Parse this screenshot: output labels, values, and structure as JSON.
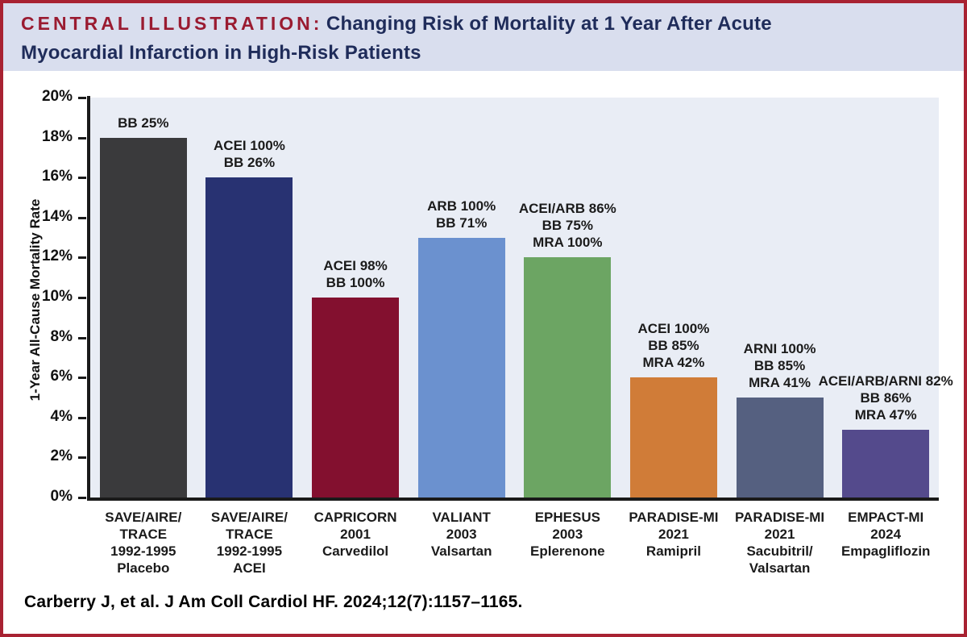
{
  "header": {
    "label": "CENTRAL ILLUSTRATION:",
    "title_line1": "Changing Risk of Mortality at 1 Year After Acute",
    "title_line2": "Myocardial Infarction in High-Risk Patients"
  },
  "chart_data": {
    "type": "bar",
    "title": "Changing Risk of Mortality at 1 Year After Acute Myocardial Infarction in High-Risk Patients",
    "xlabel": "",
    "ylabel": "1-Year All-Cause Mortality Rate",
    "ylim": [
      0,
      20
    ],
    "ytick_step": 2,
    "ytick_suffix": "%",
    "grid": false,
    "legend": "none",
    "plot_background": "#e9edf5",
    "axis_color": "#1a1a1a",
    "bars": [
      {
        "trial_lines": [
          "SAVE/AIRE/",
          "TRACE",
          "1992-1995",
          "Placebo"
        ],
        "value": 18,
        "color": "#3a3a3c",
        "annotation_lines": [
          "BB 25%"
        ]
      },
      {
        "trial_lines": [
          "SAVE/AIRE/",
          "TRACE",
          "1992-1995",
          "ACEI"
        ],
        "value": 16,
        "color": "#283272",
        "annotation_lines": [
          "ACEI 100%",
          "BB 26%"
        ]
      },
      {
        "trial_lines": [
          "CAPRICORN",
          "2001",
          "Carvedilol"
        ],
        "value": 10,
        "color": "#83102f",
        "annotation_lines": [
          "ACEI 98%",
          "BB 100%"
        ]
      },
      {
        "trial_lines": [
          "VALIANT",
          "2003",
          "Valsartan"
        ],
        "value": 13,
        "color": "#6b91cf",
        "annotation_lines": [
          "ARB 100%",
          "BB 71%"
        ]
      },
      {
        "trial_lines": [
          "EPHESUS",
          "2003",
          "Eplerenone"
        ],
        "value": 12,
        "color": "#6ca563",
        "annotation_lines": [
          "ACEI/ARB 86%",
          "BB 75%",
          "MRA 100%"
        ]
      },
      {
        "trial_lines": [
          "PARADISE-MI",
          "2021",
          "Ramipril"
        ],
        "value": 6,
        "color": "#d07c38",
        "annotation_lines": [
          "ACEI 100%",
          "BB 85%",
          "MRA 42%"
        ]
      },
      {
        "trial_lines": [
          "PARADISE-MI",
          "2021",
          "Sacubitril/",
          "Valsartan"
        ],
        "value": 5,
        "color": "#556080",
        "annotation_lines": [
          "ARNI 100%",
          "BB 85%",
          "MRA 41%"
        ]
      },
      {
        "trial_lines": [
          "EMPACT-MI",
          "2024",
          "Empagliflozin"
        ],
        "value": 3.4,
        "color": "#544a8c",
        "annotation_lines": [
          "ACEI/ARB/ARNI 82%",
          "BB 86%",
          "MRA 47%"
        ]
      }
    ]
  },
  "footer": {
    "citation": "Carberry J, et al. J Am Coll Cardiol HF. 2024;12(7):1157–1165."
  }
}
